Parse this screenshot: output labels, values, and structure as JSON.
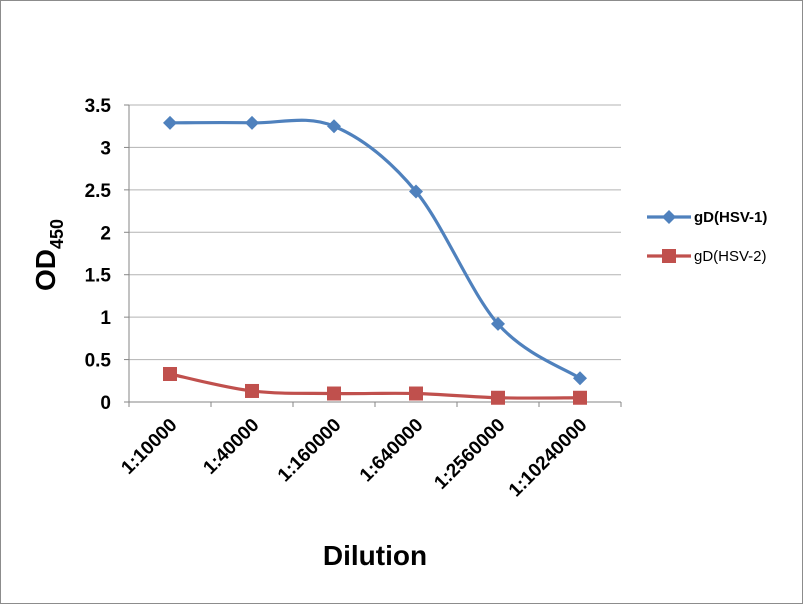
{
  "chart_data": {
    "type": "line",
    "xlabel": "Dilution",
    "ylabel": "OD",
    "ylabel_subscript": "450",
    "categories": [
      "1:10000",
      "1:40000",
      "1:160000",
      "1:640000",
      "1:2560000",
      "1:10240000"
    ],
    "ylim": [
      0,
      3.5
    ],
    "yticks": [
      "0",
      "0.5",
      "1",
      "1.5",
      "2",
      "2.5",
      "3",
      "3.5"
    ],
    "grid": true,
    "legend_position": "right",
    "series": [
      {
        "name": "gD(HSV-1)",
        "color": "#4f81bd",
        "marker": "diamond",
        "values": [
          3.29,
          3.29,
          3.25,
          2.48,
          0.92,
          0.28
        ]
      },
      {
        "name": "gD(HSV-2)",
        "color": "#c0504d",
        "marker": "square",
        "values": [
          0.33,
          0.13,
          0.1,
          0.1,
          0.05,
          0.05
        ]
      }
    ]
  }
}
